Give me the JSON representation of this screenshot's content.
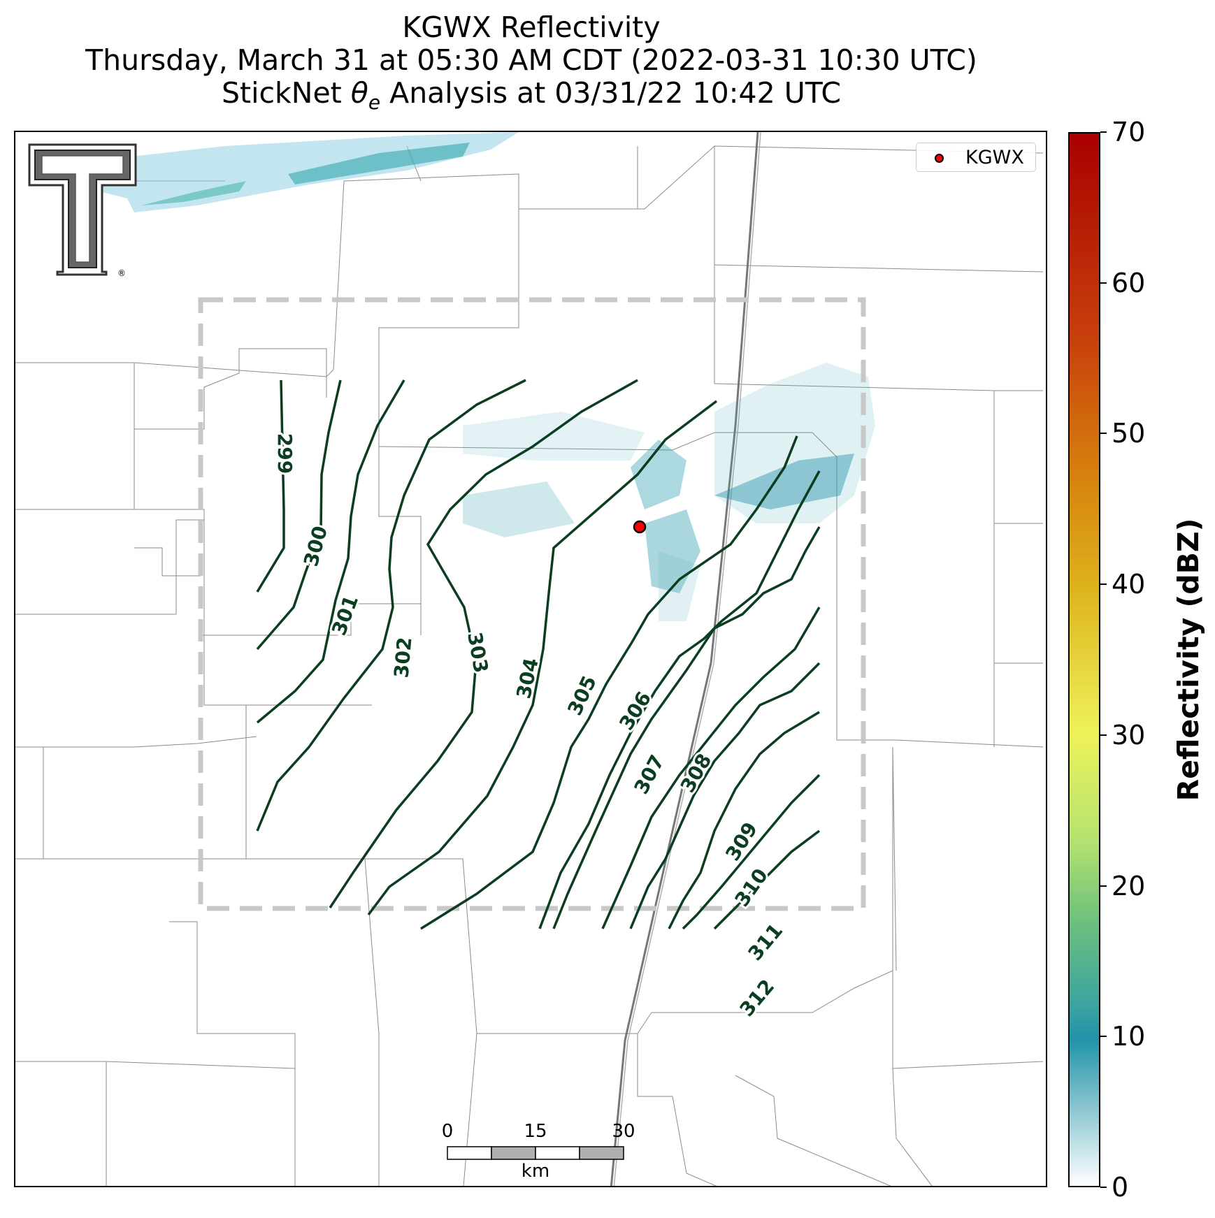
{
  "title": {
    "line1": "KGWX Reflectivity",
    "line2": "Thursday, March 31 at 05:30 AM CDT (2022-03-31 10:30 UTC)",
    "line3": "StickNet θe Analysis at 03/31/22 10:42 UTC"
  },
  "legend": {
    "label": "KGWX",
    "marker_color": "#ff0000"
  },
  "radar_site": {
    "name": "KGWX"
  },
  "logo": {
    "name": "Texas Tech Double T logo",
    "mark": "®"
  },
  "scale_bar": {
    "ticks": [
      "0",
      "15",
      "30"
    ],
    "unit": "km"
  },
  "colorbar": {
    "label": "Reflectivity (dBZ)",
    "ticks": [
      "0",
      "10",
      "20",
      "30",
      "40",
      "50",
      "60",
      "70"
    ],
    "min": 0,
    "max": 70
  },
  "contours": {
    "variable": "θe",
    "line_color": "#0b3d20",
    "levels": [
      "299",
      "300",
      "301",
      "302",
      "303",
      "304",
      "305",
      "306",
      "307",
      "308",
      "309",
      "310",
      "311",
      "312"
    ]
  },
  "analysis_domain": {
    "style": "dashed",
    "color": "#c8c8c8"
  }
}
